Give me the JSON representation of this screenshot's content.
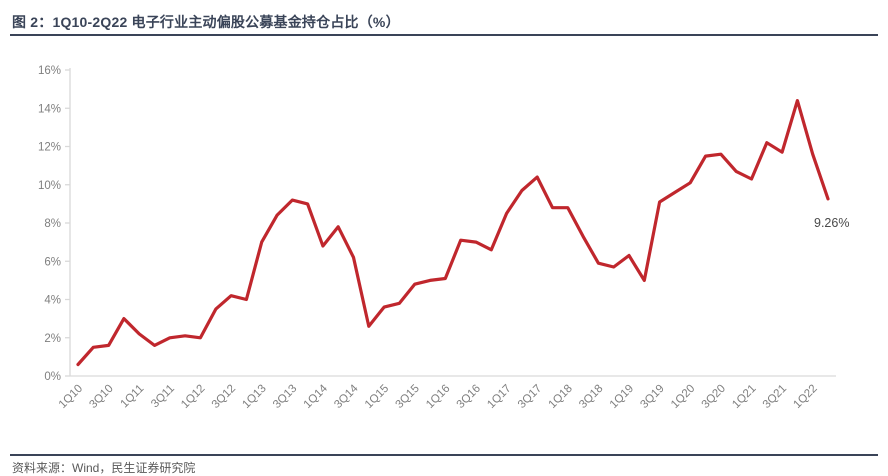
{
  "figure": {
    "title": "图 2：1Q10-2Q22 电子行业主动偏股公募基金持仓占比（%）",
    "source": "资料来源：Wind，民生证券研究院"
  },
  "colors": {
    "line_red": "#C0272D",
    "title_text": "#3A4458",
    "axis_text": "#7F7F7F",
    "axis_line": "#D9D9D9",
    "annotation_text": "#4A4A4A",
    "source_text": "#595959"
  },
  "chart_data": {
    "type": "line",
    "title": "1Q10-2Q22 电子行业主动偏股公募基金持仓占比（%）",
    "x": [
      "1Q10",
      "2Q10",
      "3Q10",
      "4Q10",
      "1Q11",
      "2Q11",
      "3Q11",
      "4Q11",
      "1Q12",
      "2Q12",
      "3Q12",
      "4Q12",
      "1Q13",
      "2Q13",
      "3Q13",
      "4Q13",
      "1Q14",
      "2Q14",
      "3Q14",
      "4Q14",
      "1Q15",
      "2Q15",
      "3Q15",
      "4Q15",
      "1Q16",
      "2Q16",
      "3Q16",
      "4Q16",
      "1Q17",
      "2Q17",
      "3Q17",
      "4Q17",
      "1Q18",
      "2Q18",
      "3Q18",
      "4Q18",
      "1Q19",
      "2Q19",
      "3Q19",
      "4Q19",
      "1Q20",
      "2Q20",
      "3Q20",
      "4Q20",
      "1Q21",
      "2Q21",
      "3Q21",
      "4Q21",
      "1Q22",
      "2Q22"
    ],
    "values": [
      0.6,
      1.5,
      1.6,
      3.0,
      2.2,
      1.6,
      2.0,
      2.1,
      2.0,
      3.5,
      4.2,
      4.0,
      7.0,
      8.4,
      9.2,
      9.0,
      6.8,
      7.8,
      6.2,
      2.6,
      3.6,
      3.8,
      4.8,
      5.0,
      5.1,
      7.1,
      7.0,
      6.6,
      8.5,
      9.7,
      10.4,
      8.8,
      8.8,
      7.3,
      5.9,
      5.7,
      6.3,
      5.0,
      9.1,
      9.6,
      10.1,
      11.5,
      11.6,
      10.7,
      10.3,
      12.2,
      11.7,
      14.4,
      11.6,
      9.26
    ],
    "x_tick_labels": [
      "1Q10",
      "3Q10",
      "1Q11",
      "3Q11",
      "1Q12",
      "3Q12",
      "1Q13",
      "3Q13",
      "1Q14",
      "3Q14",
      "1Q15",
      "3Q15",
      "1Q16",
      "3Q16",
      "1Q17",
      "3Q17",
      "1Q18",
      "3Q18",
      "1Q19",
      "3Q19",
      "1Q20",
      "3Q20",
      "1Q21",
      "3Q21",
      "1Q22"
    ],
    "y_tick_labels": [
      "0%",
      "2%",
      "4%",
      "6%",
      "8%",
      "10%",
      "12%",
      "14%",
      "16%"
    ],
    "ylim": [
      0,
      16
    ],
    "xlabel": "",
    "ylabel": "",
    "grid": false,
    "legend_position": "none",
    "annotation": {
      "text": "9.26%",
      "x": "2Q22",
      "value": 9.26
    }
  }
}
